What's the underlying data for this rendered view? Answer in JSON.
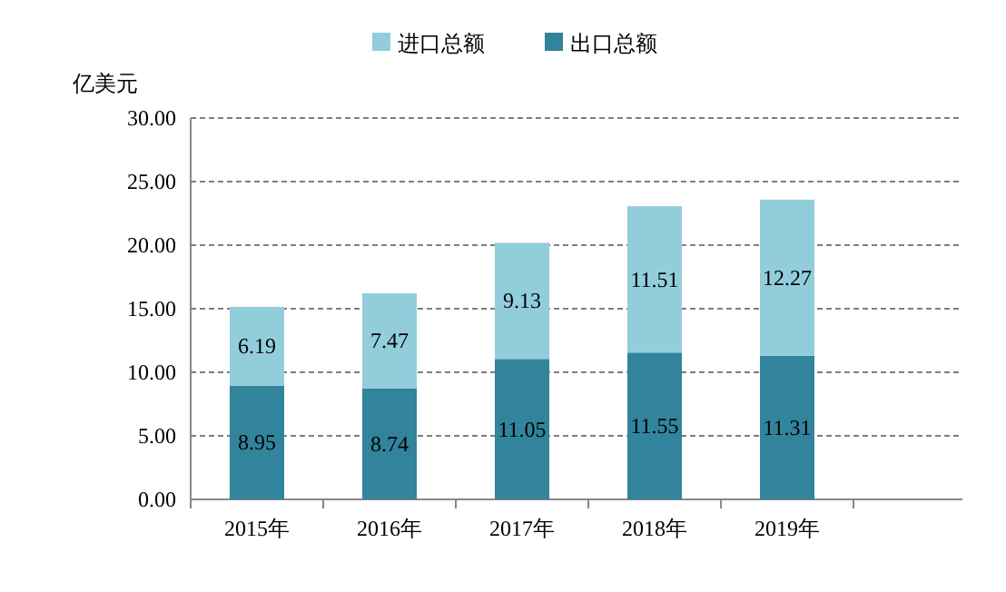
{
  "chart_data": {
    "type": "bar",
    "stacked": true,
    "ylabel": "亿美元",
    "legend": "top",
    "grid": "y",
    "data_labels": true,
    "categories": [
      "2015年",
      "2016年",
      "2017年",
      "2018年",
      "2019年"
    ],
    "series": [
      {
        "name": "出口总额",
        "color": "#31849b",
        "values": [
          8.95,
          8.74,
          11.05,
          11.55,
          11.31
        ]
      },
      {
        "name": "进口总额",
        "color": "#92cddc",
        "values": [
          6.19,
          7.47,
          9.13,
          11.51,
          12.27
        ]
      }
    ],
    "ylim": [
      0,
      30
    ],
    "yticks": [
      {
        "value": 0,
        "label": "0.00"
      },
      {
        "value": 5,
        "label": "5.00"
      },
      {
        "value": 10,
        "label": "10.00"
      },
      {
        "value": 15,
        "label": "15.00"
      },
      {
        "value": 20,
        "label": "20.00"
      },
      {
        "value": 25,
        "label": "25.00"
      },
      {
        "value": 30,
        "label": "30.00"
      }
    ]
  }
}
